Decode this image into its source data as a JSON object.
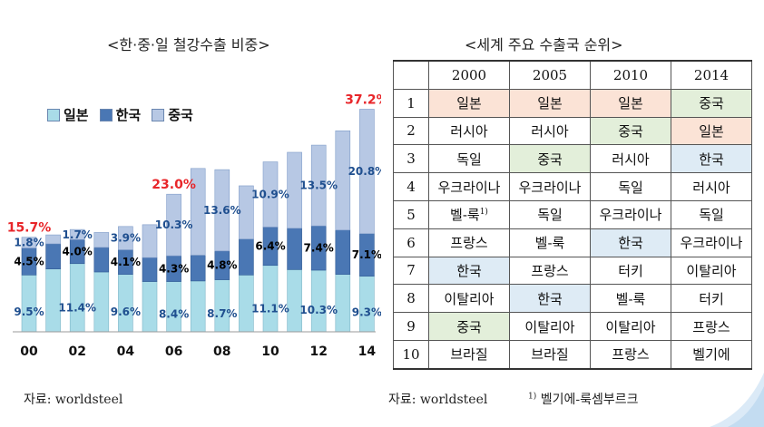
{
  "left_title": "<한·중·일 철강수출 비중>",
  "right_title": "<세계 주요 수출국 순위>",
  "legend": [
    {
      "label": "일본",
      "color": "#a9dce8"
    },
    {
      "label": "한국",
      "color": "#4a77b4"
    },
    {
      "label": "중국",
      "color": "#b7c8e4"
    }
  ],
  "chart_data": {
    "type": "bar",
    "stacked": true,
    "title": "<한·중·일 철강수출 비중>",
    "categories": [
      "00",
      "01",
      "02",
      "03",
      "04",
      "05",
      "06",
      "07",
      "08",
      "09",
      "10",
      "11",
      "12",
      "13",
      "14"
    ],
    "x_tick_labels": [
      "00",
      "",
      "02",
      "",
      "04",
      "",
      "06",
      "",
      "08",
      "",
      "10",
      "",
      "12",
      "",
      "14"
    ],
    "series": [
      {
        "name": "일본",
        "color": "#a9dce8",
        "values": [
          9.5,
          10.5,
          11.4,
          10.0,
          9.6,
          8.4,
          8.4,
          8.5,
          8.7,
          9.5,
          11.1,
          10.4,
          10.3,
          9.6,
          9.3
        ]
      },
      {
        "name": "한국",
        "color": "#4a77b4",
        "values": [
          4.5,
          4.2,
          4.0,
          4.1,
          4.1,
          4.0,
          4.3,
          4.3,
          4.8,
          6.0,
          6.4,
          6.9,
          7.4,
          7.4,
          7.1
        ]
      },
      {
        "name": "중국",
        "color": "#b7c8e4",
        "values": [
          1.8,
          1.5,
          1.7,
          2.5,
          3.9,
          5.5,
          10.3,
          14.5,
          13.6,
          8.9,
          10.9,
          12.7,
          13.5,
          16.6,
          20.8
        ]
      }
    ],
    "bar_labels": [
      {
        "index": 0,
        "series": 0,
        "text": "9.5%"
      },
      {
        "index": 0,
        "series": 1,
        "text": "4.5%"
      },
      {
        "index": 0,
        "series": 2,
        "text": "1.8%"
      },
      {
        "index": 2,
        "series": 0,
        "text": "11.4%"
      },
      {
        "index": 2,
        "series": 1,
        "text": "4.0%"
      },
      {
        "index": 2,
        "series": 2,
        "text": "1.7%"
      },
      {
        "index": 4,
        "series": 0,
        "text": "9.6%"
      },
      {
        "index": 4,
        "series": 1,
        "text": "4.1%"
      },
      {
        "index": 4,
        "series": 2,
        "text": "3.9%"
      },
      {
        "index": 6,
        "series": 0,
        "text": "8.4%"
      },
      {
        "index": 6,
        "series": 1,
        "text": "4.3%"
      },
      {
        "index": 6,
        "series": 2,
        "text": "10.3%"
      },
      {
        "index": 8,
        "series": 0,
        "text": "8.7%"
      },
      {
        "index": 8,
        "series": 1,
        "text": "4.8%"
      },
      {
        "index": 8,
        "series": 2,
        "text": "13.6%"
      },
      {
        "index": 10,
        "series": 0,
        "text": "11.1%"
      },
      {
        "index": 10,
        "series": 1,
        "text": "6.4%"
      },
      {
        "index": 10,
        "series": 2,
        "text": "10.9%"
      },
      {
        "index": 12,
        "series": 0,
        "text": "10.3%"
      },
      {
        "index": 12,
        "series": 1,
        "text": "7.4%"
      },
      {
        "index": 12,
        "series": 2,
        "text": "13.5%"
      },
      {
        "index": 14,
        "series": 0,
        "text": "9.3%"
      },
      {
        "index": 14,
        "series": 1,
        "text": "7.1%"
      },
      {
        "index": 14,
        "series": 2,
        "text": "20.8%"
      }
    ],
    "total_labels": [
      {
        "index": 0,
        "text": "15.7%"
      },
      {
        "index": 6,
        "text": "23.0%"
      },
      {
        "index": 14,
        "text": "37.2%"
      }
    ],
    "ylim": [
      0,
      40
    ],
    "grid": false
  },
  "table": {
    "headers": [
      "",
      "2000",
      "2005",
      "2010",
      "2014"
    ],
    "rows": [
      [
        "1",
        "일본",
        "일본",
        "일본",
        "중국"
      ],
      [
        "2",
        "러시아",
        "러시아",
        "중국",
        "일본"
      ],
      [
        "3",
        "독일",
        "중국",
        "러시아",
        "한국"
      ],
      [
        "4",
        "우크라이나",
        "우크라이나",
        "독일",
        "러시아"
      ],
      [
        "5",
        "벨-룩",
        "독일",
        "우크라이나",
        "독일"
      ],
      [
        "6",
        "프랑스",
        "벨-룩",
        "한국",
        "우크라이나"
      ],
      [
        "7",
        "한국",
        "프랑스",
        "터키",
        "이탈리아"
      ],
      [
        "8",
        "이탈리아",
        "한국",
        "벨-룩",
        "터키"
      ],
      [
        "9",
        "중국",
        "이탈리아",
        "이탈리아",
        "프랑스"
      ],
      [
        "10",
        "브라질",
        "브라질",
        "프랑스",
        "벨기에"
      ]
    ],
    "highlight_colors": {
      "한국": "#deebf5",
      "일본": "#fbe3d6",
      "중국": "#e3efda"
    },
    "footnote_marker": "1)"
  },
  "source_left": "자료: worldsteel",
  "source_right": "자료: worldsteel",
  "footnote_marker": "1)",
  "footnote_text": "벨기에-룩셈부르크"
}
